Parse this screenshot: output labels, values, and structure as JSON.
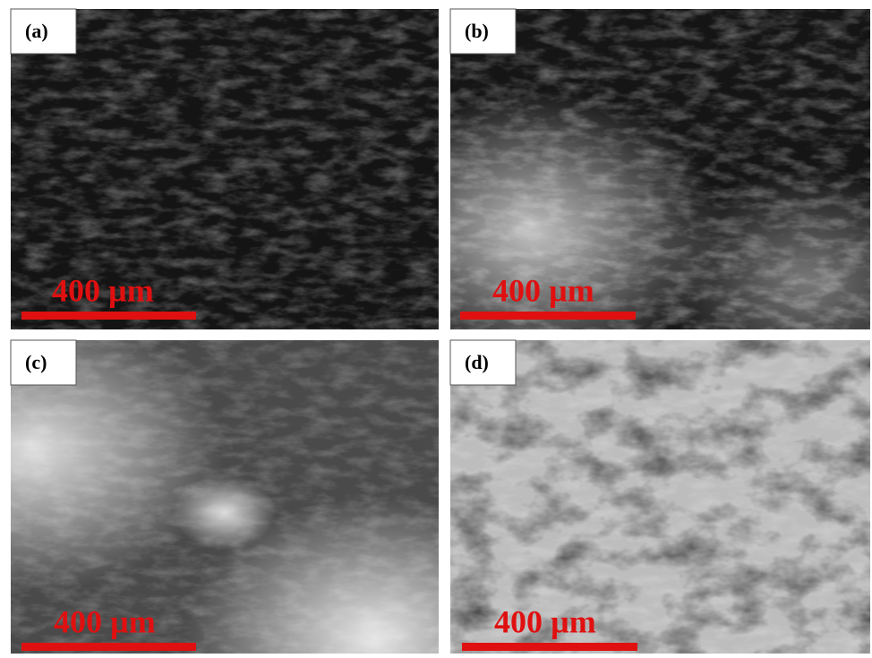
{
  "panels": [
    {
      "label": "(a)",
      "scale_bar": "400 µm"
    },
    {
      "label": "(b)",
      "scale_bar": "400 µm"
    },
    {
      "label": "(c)",
      "scale_bar": "400 µm"
    },
    {
      "label": "(d)",
      "scale_bar": "400 µm"
    }
  ]
}
